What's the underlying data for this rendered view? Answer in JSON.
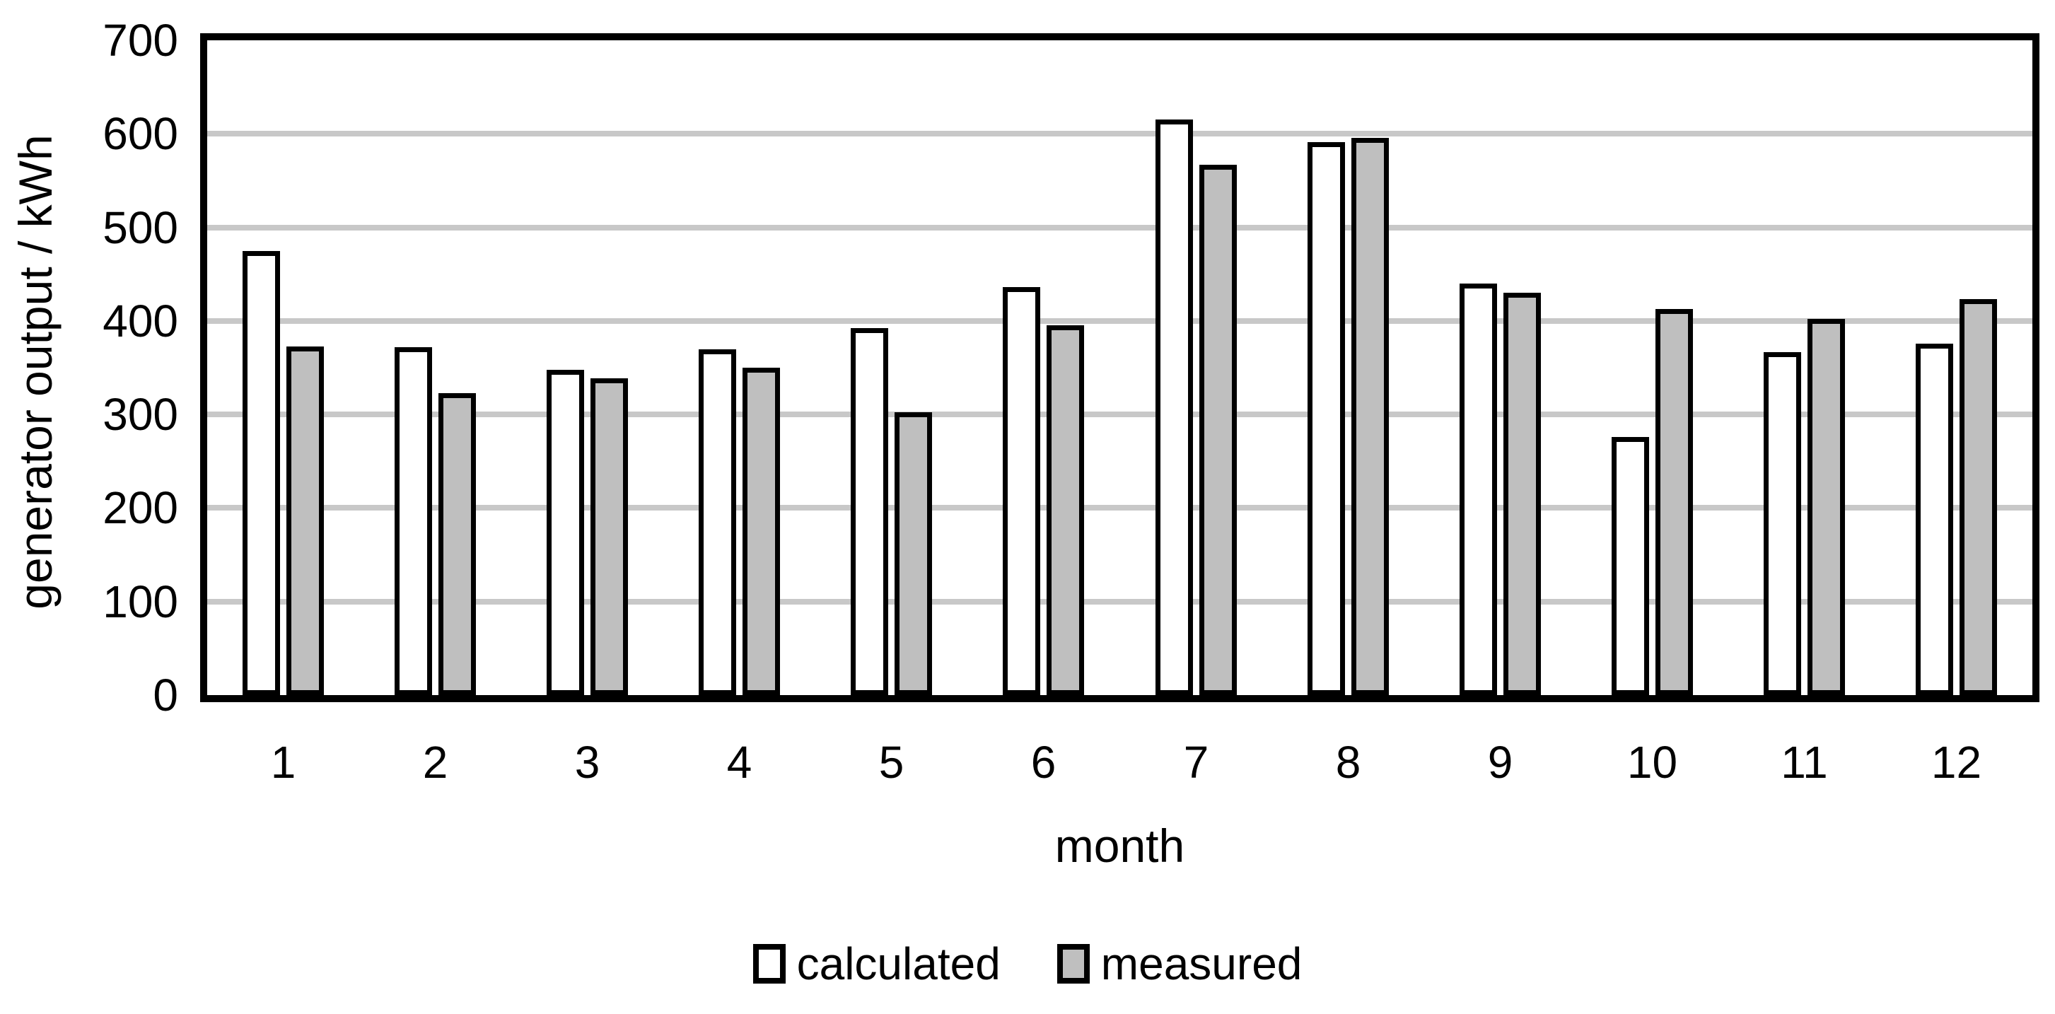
{
  "chart_data": {
    "type": "bar",
    "title": "",
    "xlabel": "month",
    "ylabel": "generator output / kWh",
    "categories": [
      "1",
      "2",
      "3",
      "4",
      "5",
      "6",
      "7",
      "8",
      "9",
      "10",
      "11",
      "12"
    ],
    "series": [
      {
        "name": "calculated",
        "fill": "#ffffff",
        "values": [
          475,
          372,
          348,
          370,
          392,
          436,
          615,
          591,
          440,
          276,
          367,
          376
        ]
      },
      {
        "name": "measured",
        "fill": "#bfbfbf",
        "values": [
          373,
          323,
          339,
          350,
          302,
          395,
          567,
          596,
          430,
          413,
          402,
          423
        ]
      }
    ],
    "ylim": [
      0,
      700
    ],
    "ytick_step": 100,
    "yticks": [
      "0",
      "100",
      "200",
      "300",
      "400",
      "500",
      "600",
      "700"
    ],
    "grid": true,
    "gridline_color": "#c8c8c8",
    "bar_border_color": "#000000",
    "axis_color": "#000000",
    "legend_position": "bottom-center"
  }
}
